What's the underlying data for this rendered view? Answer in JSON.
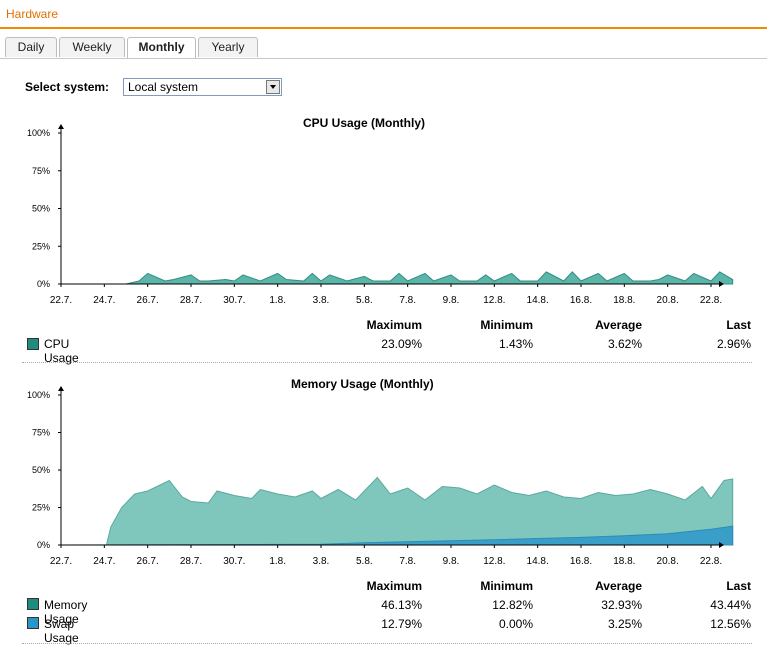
{
  "header": {
    "title": "Hardware"
  },
  "tabs": [
    {
      "label": "Daily",
      "active": false
    },
    {
      "label": "Weekly",
      "active": false
    },
    {
      "label": "Monthly",
      "active": true
    },
    {
      "label": "Yearly",
      "active": false
    }
  ],
  "system": {
    "label": "Select system:",
    "selected": "Local system"
  },
  "colors": {
    "accent": "#f08a00",
    "cpu": "#5bb5a8",
    "memory": "#7fc7bd",
    "swap": "#3a9fc8",
    "cpu_legend": "#1f8c7e",
    "swap_legend": "#2a96c8"
  },
  "stats_headers": {
    "max": "Maximum",
    "min": "Minimum",
    "avg": "Average",
    "last": "Last"
  },
  "cpu": {
    "title": "CPU Usage (Monthly)",
    "rows": [
      {
        "name": "CPU Usage",
        "max": "23.09%",
        "min": "1.43%",
        "avg": "3.62%",
        "last": "2.96%"
      }
    ]
  },
  "memory": {
    "title": "Memory Usage (Monthly)",
    "rows": [
      {
        "name": "Memory Usage",
        "max": "46.13%",
        "min": "12.82%",
        "avg": "32.93%",
        "last": "43.44%"
      },
      {
        "name": "Swap Usage",
        "max": "12.79%",
        "min": "0.00%",
        "avg": "3.25%",
        "last": "12.56%"
      }
    ]
  },
  "chart_data": [
    {
      "type": "area",
      "title": "CPU Usage (Monthly)",
      "x_ticks": [
        "22.7.",
        "24.7.",
        "26.7.",
        "28.7.",
        "30.7.",
        "1.8.",
        "3.8.",
        "5.8.",
        "7.8.",
        "9.8.",
        "12.8.",
        "14.8.",
        "16.8.",
        "18.8.",
        "20.8.",
        "22.8."
      ],
      "y_ticks": [
        "0%",
        "25%",
        "50%",
        "75%",
        "100%"
      ],
      "ylim": [
        0,
        100
      ],
      "series": [
        {
          "name": "CPU Usage",
          "x": [
            0,
            1.5,
            1.8,
            2,
            2.4,
            2.6,
            3,
            3.2,
            3.4,
            3.8,
            4,
            4.2,
            4.6,
            5,
            5.2,
            5.6,
            5.8,
            6,
            6.2,
            6.6,
            7,
            7.2,
            7.6,
            7.8,
            8,
            8.4,
            8.6,
            9,
            9.2,
            9.6,
            9.8,
            10,
            10.4,
            10.6,
            11,
            11.2,
            11.6,
            11.8,
            12,
            12.4,
            12.6,
            13,
            13.2,
            13.6,
            13.8,
            14,
            14.4,
            14.6,
            15,
            15.2,
            15.5
          ],
          "y": [
            0,
            0,
            2,
            7,
            2,
            3,
            6,
            2,
            2,
            3,
            2,
            6,
            2,
            7,
            3,
            2,
            7,
            2,
            6,
            2,
            5,
            2,
            2,
            7,
            2,
            7,
            2,
            6,
            2,
            2,
            6,
            2,
            7,
            2,
            2,
            8,
            2,
            8,
            2,
            7,
            2,
            7,
            2,
            2,
            3,
            6,
            2,
            7,
            2,
            8,
            3
          ]
        }
      ]
    },
    {
      "type": "area",
      "title": "Memory Usage (Monthly)",
      "x_ticks": [
        "22.7.",
        "24.7.",
        "26.7.",
        "28.7.",
        "30.7.",
        "1.8.",
        "3.8.",
        "5.8.",
        "7.8.",
        "9.8.",
        "12.8.",
        "14.8.",
        "16.8.",
        "18.8.",
        "20.8.",
        "22.8."
      ],
      "y_ticks": [
        "0%",
        "25%",
        "50%",
        "75%",
        "100%"
      ],
      "ylim": [
        0,
        100
      ],
      "series": [
        {
          "name": "Memory Usage",
          "x": [
            0,
            1.05,
            1.15,
            1.4,
            1.7,
            2,
            2.5,
            2.8,
            3,
            3.4,
            3.6,
            4,
            4.4,
            4.6,
            5,
            5.4,
            5.8,
            6,
            6.4,
            6.8,
            7,
            7.3,
            7.6,
            8,
            8.4,
            8.8,
            9.2,
            9.6,
            10,
            10.4,
            10.8,
            11.2,
            11.6,
            12,
            12.4,
            12.8,
            13.2,
            13.6,
            14,
            14.4,
            14.8,
            15,
            15.3,
            15.5
          ],
          "y": [
            0,
            0,
            12,
            25,
            34,
            36,
            43,
            32,
            29,
            28,
            36,
            33,
            31,
            37,
            34,
            32,
            36,
            31,
            37,
            30,
            36,
            45,
            34,
            38,
            30,
            39,
            38,
            34,
            40,
            35,
            33,
            36,
            32,
            31,
            35,
            33,
            34,
            37,
            34,
            30,
            39,
            31,
            43,
            44
          ]
        },
        {
          "name": "Swap Usage",
          "x": [
            0,
            6,
            7,
            8,
            9,
            10,
            11,
            12,
            13,
            14,
            15,
            15.5
          ],
          "y": [
            0,
            0.5,
            1.5,
            2.2,
            2.8,
            3.5,
            4.3,
            5.1,
            6.2,
            7.5,
            10.5,
            12.56
          ]
        }
      ]
    }
  ]
}
